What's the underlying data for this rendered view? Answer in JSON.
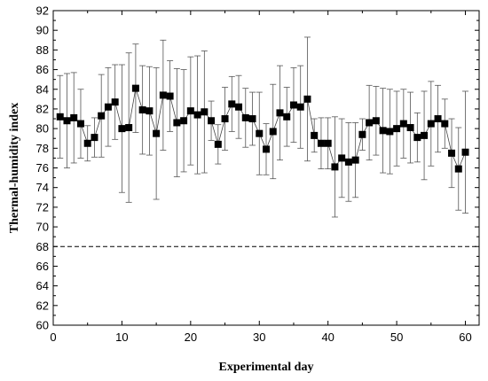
{
  "chart_data": {
    "type": "scatter",
    "title": "",
    "xlabel": "Experimental day",
    "ylabel": "Thermal-humidity index",
    "xlim": [
      0,
      62
    ],
    "ylim": [
      60,
      92
    ],
    "x_ticks": [
      0,
      10,
      20,
      30,
      40,
      50,
      60
    ],
    "y_ticks": [
      60,
      62,
      64,
      66,
      68,
      70,
      72,
      74,
      76,
      78,
      80,
      82,
      84,
      86,
      88,
      90,
      92
    ],
    "reference_line": {
      "y": 68,
      "style": "dashed"
    },
    "grid": false,
    "legend": "none",
    "marker": "filled-square",
    "connected": true,
    "error_bars": true,
    "series": [
      {
        "x": [
          1,
          2,
          3,
          4,
          5,
          6,
          7,
          8,
          9,
          10,
          11,
          12,
          13,
          14,
          15,
          16,
          17,
          18,
          19,
          20,
          21,
          22,
          23,
          24,
          25,
          26,
          27,
          28,
          29,
          30,
          31,
          32,
          33,
          34,
          35,
          36,
          37,
          38,
          39,
          40,
          41,
          42,
          43,
          44,
          45,
          46,
          47,
          48,
          49,
          50,
          51,
          52,
          53,
          54,
          55,
          56,
          57,
          58,
          59,
          60
        ],
        "y": [
          81.2,
          80.8,
          81.1,
          80.5,
          78.5,
          79.1,
          81.3,
          82.2,
          82.7,
          80.0,
          80.1,
          84.1,
          81.9,
          81.8,
          79.5,
          83.4,
          83.3,
          80.6,
          80.8,
          81.8,
          81.4,
          81.7,
          80.8,
          78.4,
          81.0,
          82.5,
          82.2,
          81.1,
          81.0,
          79.5,
          77.9,
          79.7,
          81.6,
          81.2,
          82.4,
          82.2,
          83.0,
          79.3,
          78.5,
          78.5,
          76.1,
          77.0,
          76.6,
          76.8,
          79.4,
          80.6,
          80.8,
          79.8,
          79.7,
          80.0,
          80.5,
          80.1,
          79.1,
          79.3,
          80.5,
          81.0,
          80.5,
          77.5,
          75.9,
          77.6
        ],
        "error": [
          4.2,
          4.8,
          4.6,
          3.5,
          1.8,
          2.0,
          4.2,
          4.0,
          3.8,
          6.5,
          7.6,
          4.5,
          4.5,
          4.5,
          6.7,
          5.6,
          3.6,
          5.5,
          5.2,
          5.5,
          6.0,
          6.2,
          2.0,
          2.0,
          3.2,
          2.8,
          3.2,
          3.0,
          2.7,
          4.2,
          2.6,
          4.8,
          4.8,
          3.0,
          3.8,
          4.2,
          6.3,
          1.7,
          2.6,
          2.6,
          5.1,
          4.0,
          4.0,
          3.8,
          1.6,
          3.8,
          3.5,
          4.3,
          4.3,
          3.8,
          3.5,
          3.6,
          2.5,
          4.5,
          4.3,
          3.4,
          2.5,
          3.5,
          4.2,
          6.2
        ]
      }
    ]
  }
}
